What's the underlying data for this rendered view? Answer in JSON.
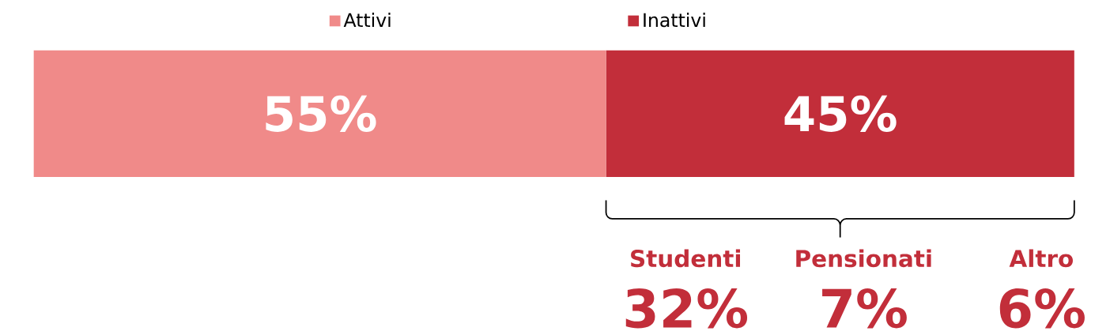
{
  "chart_data": {
    "type": "bar",
    "orientation": "horizontal",
    "stacked": true,
    "categories": [
      null
    ],
    "legend": "top",
    "series": [
      {
        "name": "Attivi",
        "color": "#f08a89",
        "values": [
          55
        ],
        "value_labels": [
          "55%"
        ]
      },
      {
        "name": "Inattivi",
        "color": "#c22e3a",
        "values": [
          45
        ],
        "value_labels": [
          "45%"
        ]
      }
    ],
    "annotations": [
      "Studenti",
      "32%",
      "Pensionati",
      "7%",
      "Altro",
      "6%"
    ]
  }
}
